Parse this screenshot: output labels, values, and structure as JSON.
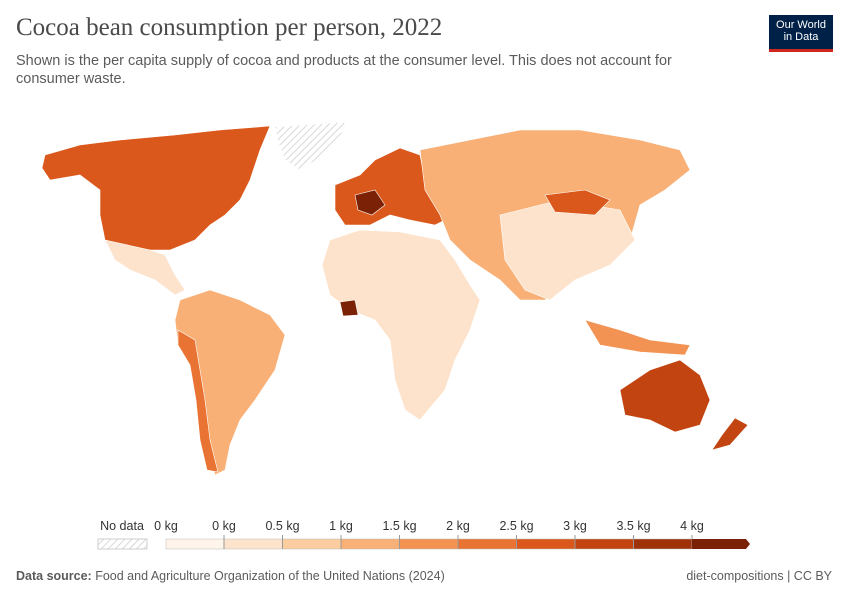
{
  "header": {
    "title": "Cocoa bean consumption per person, 2022",
    "subtitle": "Shown is the per capita supply of cocoa and products at the consumer level. This does not account for consumer waste.",
    "logo": [
      "Our World",
      "in Data"
    ]
  },
  "legend": {
    "no_data": "No data",
    "zero_label": "0 kg",
    "ticks": [
      {
        "value": 0,
        "label": "0 kg"
      },
      {
        "value": 0.5,
        "label": "0.5 kg"
      },
      {
        "value": 1,
        "label": "1 kg"
      },
      {
        "value": 1.5,
        "label": "1.5 kg"
      },
      {
        "value": 2,
        "label": "2 kg"
      },
      {
        "value": 2.5,
        "label": "2.5 kg"
      },
      {
        "value": 3,
        "label": "3 kg"
      },
      {
        "value": 3.5,
        "label": "3.5 kg"
      },
      {
        "value": 4,
        "label": "4 kg"
      }
    ],
    "colors": [
      "#fef4ea",
      "#fde3cb",
      "#fbcd9f",
      "#f8b077",
      "#f29253",
      "#e97332",
      "#db581c",
      "#c24410",
      "#a0320a",
      "#7b2206"
    ]
  },
  "footer": {
    "source_label": "Data source:",
    "source": "Food and Agriculture Organization of the United Nations (2024)",
    "license": "diet-compositions | CC BY"
  }
}
